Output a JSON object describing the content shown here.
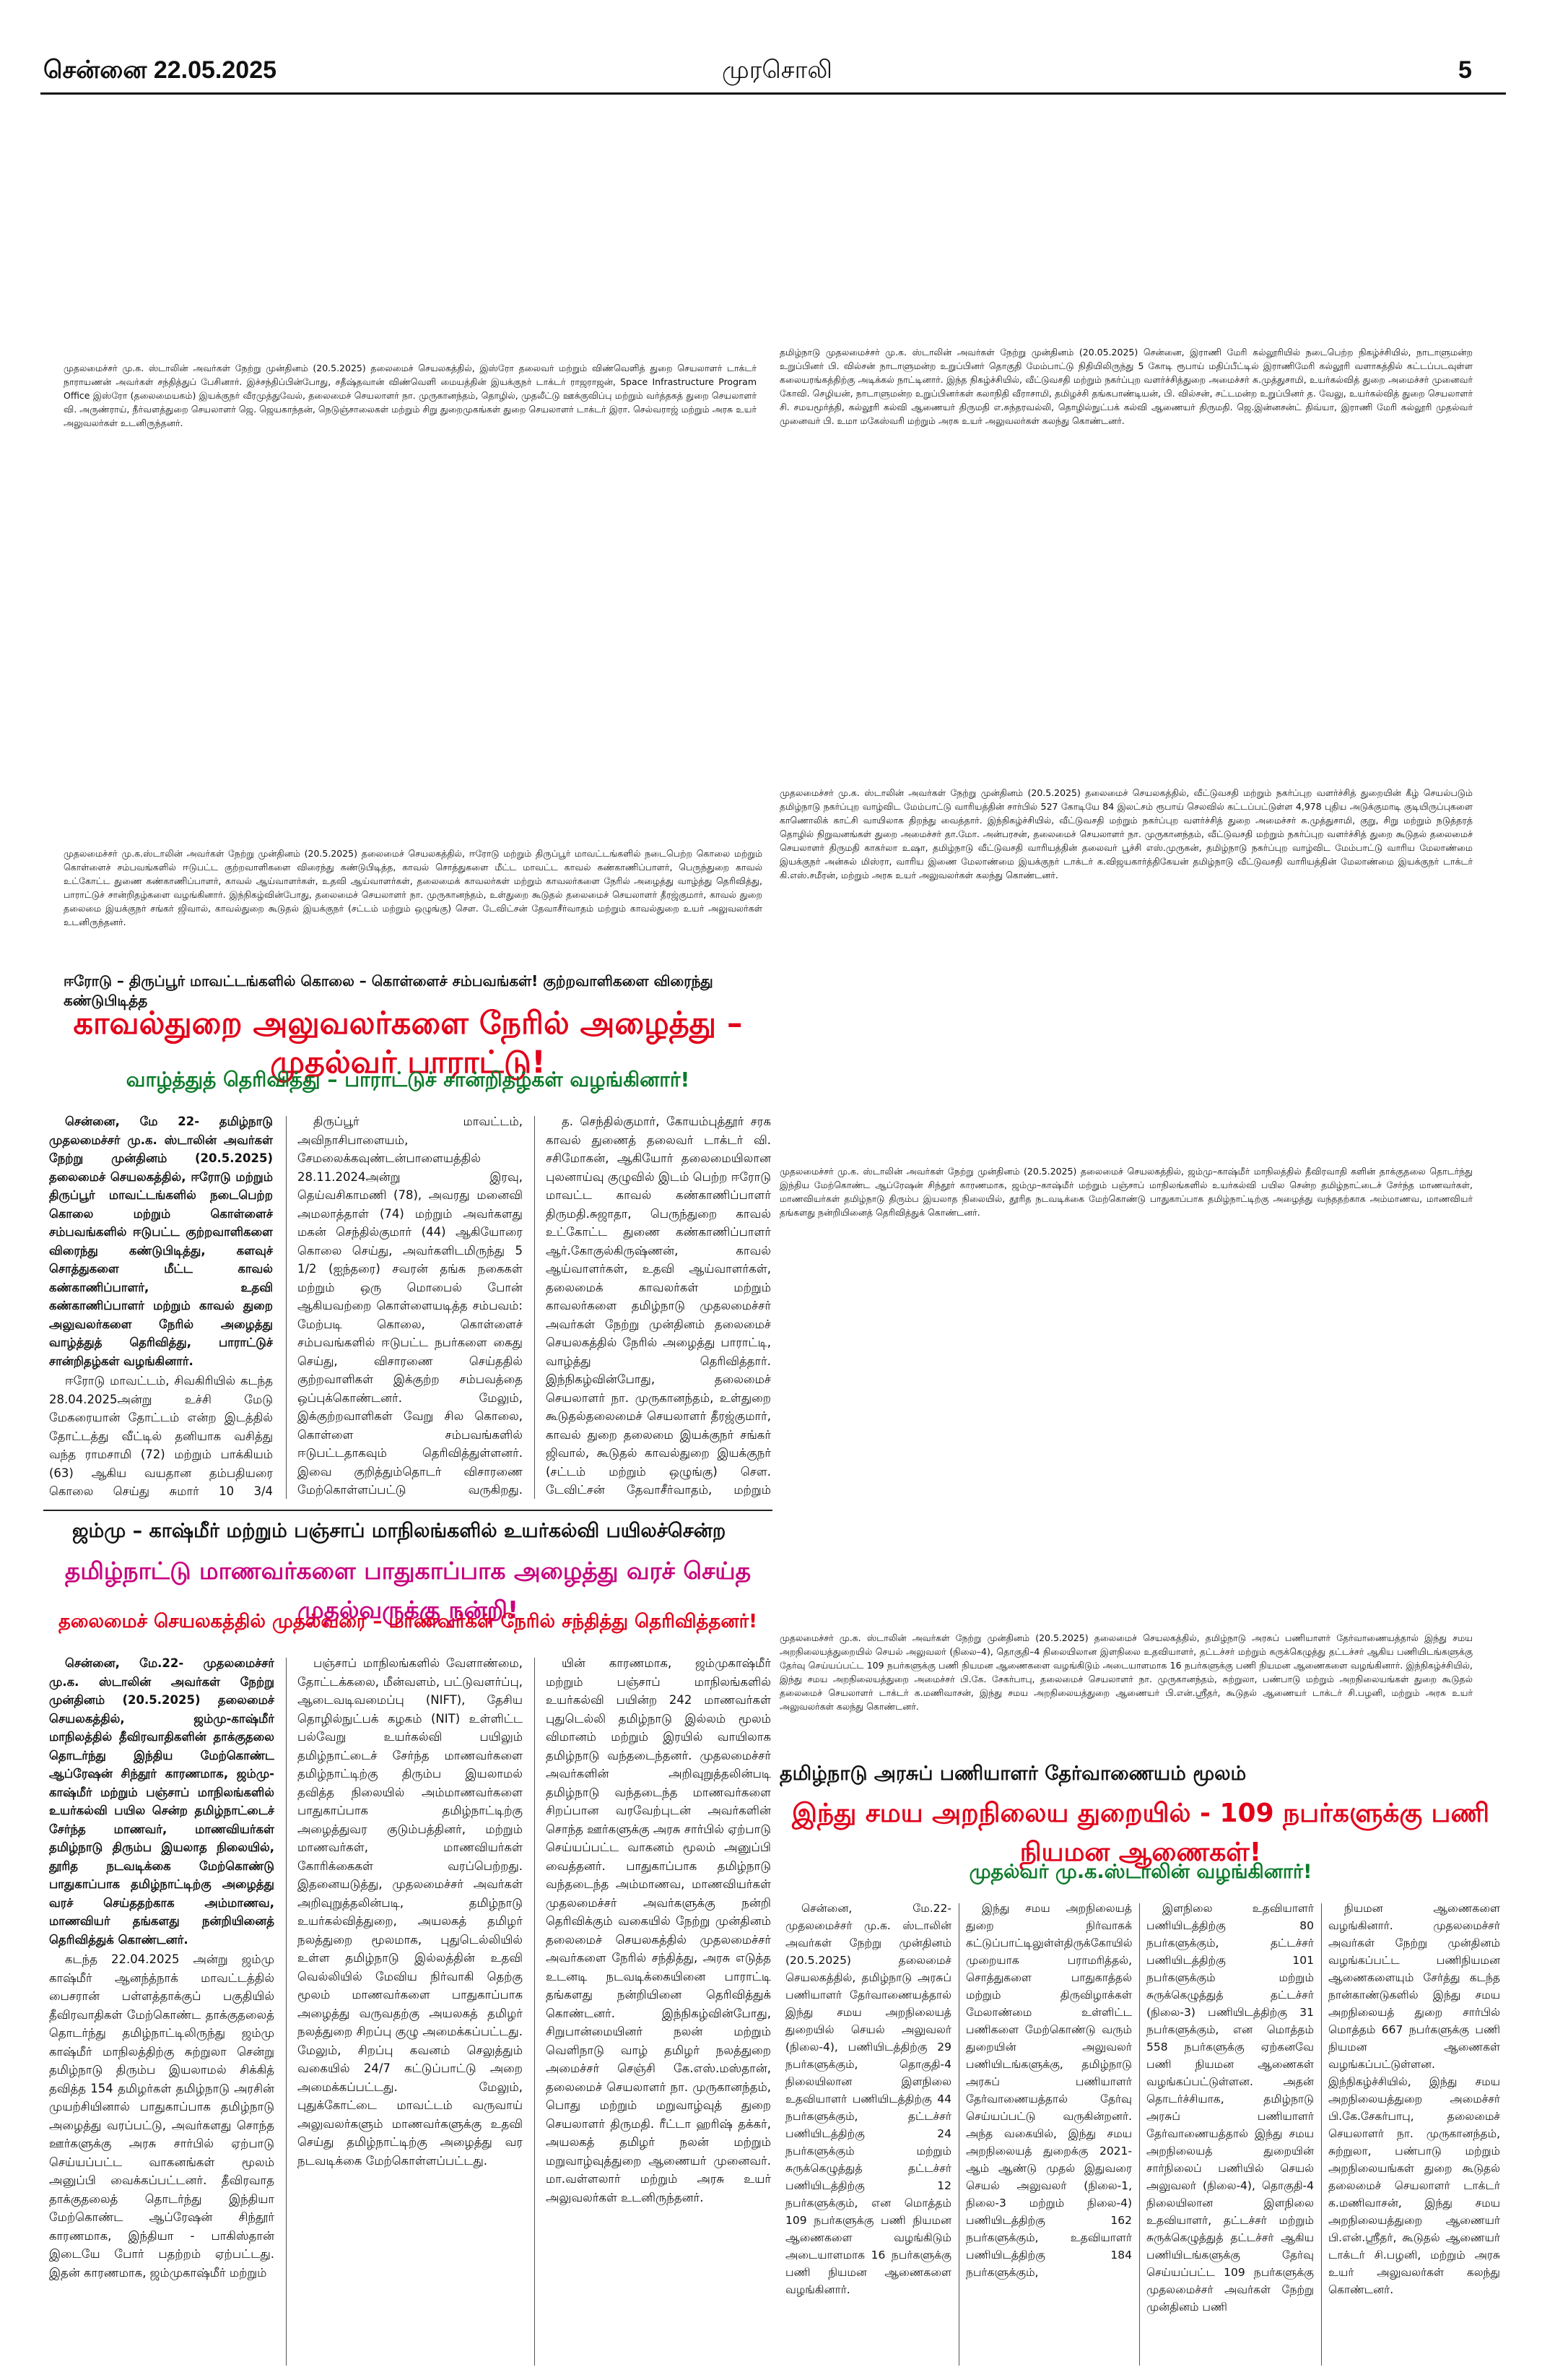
{
  "header": {
    "date": "சென்னை 22.05.2025",
    "paper_name": "முரசொலி",
    "page_no": "5"
  },
  "photos": [
    {
      "caption": "முதலமைச்சர் மு.க. ஸ்டாலின் அவர்கள் நேற்று முன்தினம் (20.5.2025) தலைமைச் செயலகத்தில், இஸ்ரோ தலைவர் மற்றும் விண்வெளித் துறை செயலாளர் டாக்டர் நாராயணன் அவர்கள் சந்தித்துப் பேசினார். இச்சந்திப்பின்போது, சதீஷ்தவான் விண்வெளி மையத்தின் இயக்குநர் டாக்டர் ராஜராஜன், Space Infrastructure Program Office இஸ்ரோ (தலைமையகம்) இயக்குநர் வீரமுத்துவேல், தலைமைச் செயலாளர் நா. முருகானந்தம், தொழில், முதலீட்டு ஊக்குவிப்பு மற்றும் வர்த்தகத் துறை செயலாளர் வி. அருண்ராய், நீர்வளத்துறை செயலாளர் ஜெ. ஜெயகாந்தன், நெடுஞ்சாலைகள் மற்றும் சிறு துறைமுகங்கள் துறை செயலாளர் டாக்டர் இரா. செல்வராஜ் மற்றும் அரசு உயர் அலுவலர்கள் உடனிருந்தனர்."
    },
    {
      "caption": "தமிழ்நாடு முதலமைச்சர் மு.க. ஸ்டாலின் அவர்கள் நேற்று முன்தினம் (20.05.2025) சென்னை, இராணி மேரி கல்லூரியில் நடைபெற்ற நிகழ்ச்சியில், நாடாளுமன்ற உறுப்பினர் பி. வில்சன் நாடாளுமன்ற உறுப்பினர் தொகுதி மேம்பாட்டு நிதியிலிருந்து 5 கோடி ரூபாய் மதிப்பீட்டில் இராணிமேரி கல்லூரி வளாகத்தில் கட்டப்படவுள்ள கலையரங்கத்திற்கு அடிக்கல் நாட்டினார். இந்த நிகழ்ச்சியில், வீட்டுவசதி மற்றும் நகர்ப்புற வளர்ச்சித்துறை அமைச்சர் சு.முத்துசாமி, உயர்கல்வித் துறை அமைச்சர் முனைவர் கோவி. செழியன், நாடாளுமன்ற உறுப்பினர்கள் கலாநிதி வீராசாமி, தமிழச்சி தங்கபாண்டியன், பி. வில்சன், சட்டமன்ற உறுப்பினர் த. வேலு, உயர்கல்வித் துறை செயலாளர் சி. சமயமூர்த்தி, கல்லூரி கல்வி ஆணையர் திருமதி எ.சுந்தரவல்லி, தொழில்நுட்பக் கல்வி ஆணையர் திருமதி. ஜெ.இன்னசன்ட் திவ்யா, இராணி மேரி கல்லூரி முதல்வர் முனைவர் பி. உமா மகேஸ்வரி மற்றும் அரசு உயர் அலுவலர்கள் கலந்து கொண்டனர்."
    },
    {
      "caption": "முதலமைச்சர் மு.க.ஸ்டாலின் அவர்கள் நேற்று முன்தினம் (20.5.2025) தலைமைச் செயலகத்தில், ஈரோடு மற்றும் திருப்பூர் மாவட்டங்களில் நடைபெற்ற கொலை மற்றும் கொள்ளைச் சம்பவங்களில் ஈடுபட்ட குற்றவாளிகளை விரைந்து கண்டுபிடித்த, காவல் சொத்துகளை மீட்ட மாவட்ட காவல் கண்காணிப்பாளர், பெருந்துறை காவல் உட்கோட்ட துணை கண்காணிப்பாளர், காவல் ஆய்வாளர்கள், உதவி ஆய்வாளர்கள், தலைமைக் காவலர்கள் மற்றும் காவலர்களை நேரில் அழைத்து வாழ்த்து தெரிவித்து, பாராட்டுச் சான்றிதழ்களை வழங்கினார். இந்நிகழ்வின்போது, தலைமைச் செயலாளர் நா. முருகானந்தம், உள்துறை கூடுதல் தலைமைச் செயலாளர் தீரஜ்குமார், காவல் துறை தலைமை இயக்குநர் சங்கர் ஜிவால், காவல்துறை கூடுதல் இயக்குநர் (சட்டம் மற்றும் ஒழுங்கு) செள. டேவிட்சன் தேவாசீர்வாதம் மற்றும் காவல்துறை உயர் அலுவலர்கள் உடனிருந்தனர்."
    },
    {
      "caption": "முதலமைச்சர் மு.க. ஸ்டாலின் அவர்கள் நேற்று முன்தினம் (20.5.2025) தலைமைச் செயலகத்தில், வீட்டுவசதி மற்றும் நகர்ப்புற வளர்ச்சித் துறையின் கீழ் செயல்படும் தமிழ்நாடு நகர்ப்புற வாழ்விட மேம்பாட்டு வாரியத்தின் சார்பில் 527 கோடியே 84 இலட்சம் ரூபாய் செலவில் கட்டப்பட்டுள்ள 4,978 புதிய அடுக்குமாடி குடியிருப்புகளை காணொலிக் காட்சி வாயிலாக திறந்து வைத்தார். இந்நிகழ்ச்சியில், வீட்டுவசதி மற்றும் நகர்ப்புற வளர்ச்சித் துறை அமைச்சர் சு.முத்துசாமி, குறு, சிறு மற்றும் நடுத்தரத் தொழில் நிறுவனங்கள் துறை அமைச்சர் தா.மோ. அன்பரசன், தலைமைச் செயலாளர் நா. முருகானந்தம், வீட்டுவசதி மற்றும் நகர்ப்புற வளர்ச்சித் துறை கூடுதல் தலைமைச் செயலாளர் திருமதி காகர்லா உஷா, தமிழ்நாடு வீட்டுவசதி வாரியத்தின் தலைவர் பூச்சி எஸ்.முருகன், தமிழ்நாடு நகர்ப்புற வாழ்விட மேம்பாட்டு வாரிய மேலாண்மை இயக்குநர் அன்சுல் மிஸ்ரா, வாரிய இணை மேலாண்மை இயக்குநர் டாக்டர் க.விஜயகார்த்திகேயன் தமிழ்நாடு வீட்டுவசதி வாரியத்தின் மேலாண்மை இயக்குநர் டாக்டர் கி.எஸ்.சமீரன், மற்றும் அரசு உயர் அலுவலர்கள் கலந்து கொண்டனர்."
    },
    {
      "caption": "முதலமைச்சர் மு.க. ஸ்டாலின் அவர்கள் நேற்று முன்தினம் (20.5.2025) தலைமைச் செயலகத்தில், ஜம்மு–காஷ்மீர் மாநிலத்தில் தீவிரவாதி களின் தாக்குதலை தொடர்ந்து இந்திய மேற்கொண்ட ஆப்ரேஷன் சிந்தூர் காரணமாக, ஜம்மு–காஷ்மீர் மற்றும் பஞ்சாப் மாநிலங்களில் உயர்கல்வி பயில சென்ற தமிழ்நாட்டைச் சேர்ந்த மாணவர்கள், மாணவியர்கள் தமிழ்நாடு திரும்ப இயலாத நிலையில், தூரித நடவடிக்கை மேற்கொண்டு பாதுகாப்பாக தமிழ்நாட்டிற்கு அழைத்து வந்ததற்காக அம்மாணவ, மாணவியர் தங்களது நன்றியினைத் தெரிவித்துக் கொண்டனர்."
    },
    {
      "caption": "முதலமைச்சர் மு.க. ஸ்டாலின் அவர்கள் நேற்று முன்தினம் (20.5.2025) தலைமைச் செயலகத்தில், தமிழ்நாடு அரசுப் பணியாளர் தேர்வாணையத்தால் இந்து சமய அறநிலையத்துறையில் செயல் அலுவலர் (நிலை–4), தொகுதி–4 நிலையிலான இளநிலை உதவியாளர், தட்டச்சர் மற்றும் சுருக்கெழுத்து தட்டச்சர் ஆகிய பணியிடங்களுக்கு தேர்வு செய்யப்பட்ட 109 நபர்களுக்கு பணி நியமன ஆணைகளை வழங்கிடும் அடையாளமாக 16 நபர்களுக்கு பணி நியமன ஆணைகளை வழங்கினார். இந்நிகழ்ச்சியில், இந்து சமய அறநிலையத்துறை அமைச்சர் பி.கே. சேகர்பாபு, தலைமைச் செயலாளர் நா. முருகானந்தம், சுற்றுலா, பண்பாடு மற்றும் அறநிலையங்கள் துறை கூடுதல் தலைமைச் செயலாளர் டாக்டர் க.மணிவாசன், இந்து சமய அறநிலையத்துறை ஆணையர் பி.என்.ஸ்ரீதர், கூடுதல் ஆணையர் டாக்டர் சி.பழனி, மற்றும் அரசு உயர் அலுவலர்கள் கலந்து கொண்டனர்."
    }
  ],
  "story1": {
    "kicker": "ஈரோடு – திருப்பூர் மாவட்டங்களில் கொலை – கொள்ளைச் சம்பவங்கள்! குற்றவாளிகளை விரைந்து கண்டுபிடித்த",
    "headline": "காவல்துறை அலுவலர்களை நேரில் அழைத்து – முதல்வர் பாராட்டு!",
    "subhead": "வாழ்த்துத் தெரிவித்து – பாராட்டுச் சான்றிதழ்கள் வழங்கினார்!",
    "col1_lead": "சென்னை, மே 22- தமிழ்நாடு முதலமைச்சர் மு.க. ஸ்டாலின் அவர்கள் நேற்று முன்தினம் (20.5.2025) தலைமைச் செயலகத்தில், ஈரோடு மற்றும் திருப்பூர் மாவட்டங்களில் நடைபெற்ற கொலை மற்றும் கொள்ளைச் சம்பவங்களில் ஈடுபட்ட குற்றவாளிகளை விரைந்து கண்டுபிடித்து, களவுச் சொத்துகளை மீட்ட காவல் கண்காணிப்பாளர், உதவி கண்காணிப்பாளர் மற்றும் காவல் துறை அலுவலர்களை நேரில் அழைத்து வாழ்த்துத் தெரிவித்து, பாராட்டுச் சான்றிதழ்கள் வழங்கினார்.",
    "col1_body": "ஈரோடு மாவட்டம், சிவகிரியில் கடந்த 28.04.2025அன்று உச்சி மேடு மேகரையான் தோட்டம் என்ற இடத்தில் தோட்டத்து வீட்டில் தனியாக வசித்து வந்த ராமசாமி (72) மற்றும் பாக்கியம் (63) ஆகிய வயதான தம்பதியரை கொலை செய்து சுமார் 10 3/4 (பத்தேமுக்கால்) சவரன் நகைகளை மர்ம நபர்கள் கொள்ளையடித்த சம்பவம்;",
    "col2_body": "திருப்பூர் மாவட்டம், அவிநாசிபாளையம், சேமலைக்கவுண்டன்பாளையத்தில் 28.11.2024அன்று இரவு, தெய்வசிகாமணி (78), அவரது மனைவி அமலாத்தாள் (74) மற்றும் அவர்களது மகன் செந்தில்குமார் (44) ஆகியோரை கொலை செய்து, அவர்களிடமிருந்து 5 1/2 (ஐந்தரை) சவரன் தங்க நகைகள் மற்றும் ஒரு மொபைல் போன் ஆகியவற்றை கொள்ளையடித்த சம்பவம்: மேற்படி கொலை, கொள்ளைச் சம்பவங்களில் ஈடுபட்ட நபர்களை கைது செய்து, விசாரணை செய்ததில் குற்றவாளிகள் இக்குற்ற சம்பவத்தை ஒப்புக்கொண்டனர். மேலும், இக்குற்றவாளிகள் வேறு சில கொலை, கொள்ளை சம்பவங்களில் ஈடுபட்டதாகவும் தெரிவித்துள்ளனர். இவை குறித்தும்தொடர் விசாரணை மேற்கொள்ளப்பட்டு வருகிறது. இக்குற்றசம்பவங்களை விரைந்து, புலனாய்வு செய்து குற்றவாளிகளை கைது செய்த, காவல்துறை தலைவர் (மேற்கு மண்டலம்) கோயம்புத்தூர்",
    "col3_body": "த. செந்தில்குமார், கோயம்புத்தூர் சரக காவல் துணைத் தலைவர் டாக்டர் வி. சசிமோகன், ஆகியோர் தலைமையிலான புலனாய்வு குழுவில் இடம் பெற்ற ஈரோடு மாவட்ட காவல் கண்காணிப்பாளர் திருமதி.சுஜாதா, பெருந்துறை காவல் உட்கோட்ட துணை கண்காணிப்பாளர் ஆர்.கோகுல்கிருஷ்ணன், காவல் ஆய்வாளர்கள், உதவி ஆய்வாளர்கள், தலைமைக் காவலர்கள் மற்றும் காவலர்களை தமிழ்நாடு முதலமைச்சர் அவர்கள் நேற்று முன்தினம் தலைமைச் செயலகத்தில் நேரில் அழைத்து பாராட்டி, வாழ்த்து தெரிவித்தார். இந்நிகழ்வின்போது, தலைமைச் செயலாளர் நா. முருகானந்தம், உள்துறை கூடுதல்தலைமைச் செயலாளர் தீரஜ்குமார், காவல் துறை தலைமை இயக்குநர் சங்கர் ஜிவால், கூடுதல் காவல்துறை இயக்குநர் (சட்டம் மற்றும் ஒழுங்கு) செள. டேவிட்சன் தேவாசீர்வாதம், மற்றும் காவல்துறை உயர் அலுவலர்கள் உடனிருந்தனர்."
  },
  "story2": {
    "kicker": "ஜம்மு – காஷ்மீர் மற்றும் பஞ்சாப் மாநிலங்களில் உயர்கல்வி பயிலச்சென்ற",
    "headline": "தமிழ்நாட்டு மாணவர்களை பாதுகாப்பாக அழைத்து வரச் செய்த முதல்வருக்கு நன்றி!",
    "subhead": "தலைமைச் செயலகத்தில் முதல்வரை – மாணவர்கள் நேரில் சந்தித்து தெரிவித்தனர்!",
    "col1_lead": "சென்னை, மே.22- முதலமைச்சர் மு.க. ஸ்டாலின் அவர்கள் நேற்று முன்தினம் (20.5.2025) தலைமைச் செயலகத்தில், ஜம்மு-காஷ்மீர் மாநிலத்தில் தீவிரவாதிகளின் தாக்குதலை தொடர்ந்து இந்திய மேற்கொண்ட ஆப்ரேஷன் சிந்தூர் காரணமாக, ஜம்மு-காஷ்மீர் மற்றும் பஞ்சாப் மாநிலங்களில் உயர்கல்வி பயில சென்ற தமிழ்நாட்டைச் சேர்ந்த மாணவர், மாணவியர்கள் தமிழ்நாடு திரும்ப இயலாத நிலையில், தூரித நடவடிக்கை மேற்கொண்டு பாதுகாப்பாக தமிழ்நாட்டிற்கு அழைத்து வரச் செய்ததற்காக அம்மாணவ, மாணவியர் தங்களது நன்றியினைத் தெரிவித்துக் கொண்டனர்.",
    "col1_body": "கடந்த 22.04.2025 அன்று ஜம்மு காஷ்மீர் ஆனந்த்நாக் மாவட்டத்தில் பைசரான் பள்ளத்தாக்குப் பகுதியில் தீவிரவாதிகள் மேற்கொண்ட தாக்குதலைத் தொடர்ந்து தமிழ்நாட்டிலிருந்து ஜம்மு காஷ்மீர் மாநிலத்திற்கு சுற்றுலா சென்று தமிழ்நாடு திரும்ப இயலாமல் சிக்கித் தவித்த 154 தமிழர்கள் தமிழ்நாடு அரசின் முயற்சியினால் பாதுகாப்பாக தமிழ்நாடு அழைத்து வரப்பட்டு, அவர்களது சொந்த ஊர்களுக்கு அரசு சார்பில் ஏற்பாடு செய்யப்பட்ட வாகனங்கள் மூலம் அனுப்பி வைக்கப்பட்டனர். தீவிரவாத தாக்குதலைத் தொடர்ந்து இந்தியா மேற்கொண்ட ஆப்ரேஷன் சிந்தூர் காரணமாக, இந்தியா - பாகிஸ்தான் இடையே போர் பதற்றம் ஏற்பட்டது. இதன் காரணமாக, ஜம்முகாஷ்மீர் மற்றும்",
    "col2_body": "பஞ்சாப் மாநிலங்களில் வேளாண்மை, தோட்டக்கலை, மீன்வளம், பட்டுவளர்ப்பு, ஆடைவடிவமைப்பு (NIFT), தேசிய தொழில்நுட்பக் கழகம் (NIT) உள்ளிட்ட பல்வேறு உயர்கல்வி பயிலும் தமிழ்நாட்டைச் சேர்ந்த மாணவர்களை தமிழ்நாட்டிற்கு திரும்ப இயலாமல் தவித்த நிலையில் அம்மாணவர்களை பாதுகாப்பாக தமிழ்நாட்டிற்கு அழைத்துவர குடும்பத்தினர், மற்றும் மாணவர்கள், மாணவியர்கள் கோரிக்கைகள் வரப்பெற்றது. இதனையடுத்து, முதலமைச்சர் அவர்கள் அறிவுறுத்தலின்படி, தமிழ்நாடு உயர்கல்வித்துறை, அயலகத் தமிழர் நலத்துறை மூலமாக, புதுடெல்லியில் உள்ள தமிழ்நாடு இல்லத்தின் உதவி வெல்லியில் மேவிய நிர்வாகி தெற்கு மூலம் மாணவர்களை பாதுகாப்பாக அழைத்து வருவதற்கு அயலகத் தமிழர் நலத்துறை சிறப்பு குழு அமைக்கப்பட்டது. மேலும், சிறப்பு கவனம் செலுத்தும் வகையில் 24/7 கட்டுப்பாட்டு அறை அமைக்கப்பட்டது. மேலும், புதுக்கோட்டை மாவட்டம் வருவாய் அலுவலர்களும் மாணவர்களுக்கு உதவி செய்து தமிழ்நாட்டிற்கு அழைத்து வர நடவடிக்கை மேற்கொள்ளப்பட்டது.",
    "col3_body": "யின் காரணமாக, ஜம்முகாஷ்மீர் மற்றும் பஞ்சாப் மாநிலங்களில் உயர்கல்வி பயின்ற 242 மாணவர்கள் புதுடெல்லி தமிழ்நாடு இல்லம் மூலம் விமானம் மற்றும் இரயில் வாயிலாக தமிழ்நாடு வந்தடைந்தனர். முதலமைச்சர் அவர்களின் அறிவுறுத்தலின்படி தமிழ்நாடு வந்தடைந்த மாணவர்களை சிறப்பான வரவேற்புடன் அவர்களின் சொந்த ஊர்களுக்கு அரசு சார்பில் ஏற்பாடு செய்யப்பட்ட வாகனம் மூலம் அனுப்பி வைத்தனர். பாதுகாப்பாக தமிழ்நாடு வந்தடைந்த அம்மாணவ, மாணவியர்கள் முதலமைச்சர் அவர்களுக்கு நன்றி தெரிவிக்கும் வகையில் நேற்று முன்தினம் தலைமைச் செயலகத்தில் முதலமைச்சர் அவர்களை நேரில் சந்தித்து, அரசு எடுத்த உடனடி நடவடிக்கையினை பாராட்டி தங்களது நன்றியினை தெரிவித்துக் கொண்டனர். இந்நிகழ்வின்போது, சிறுபான்மையினர் நலன் மற்றும் வெளிநாடு வாழ் தமிழர் நலத்துறை அமைச்சர் செஞ்சி கே.எஸ்.மஸ்தான், தலைமைச் செயலாளர் நா. முருகானந்தம், பொது மற்றும் மறுவாழ்வுத் துறை செயலாளர் திருமதி. ரீட்டா ஹரிஷ் தக்கர், அயலகத் தமிழர் நலன் மற்றும் மறுவாழ்வுத்துறை ஆணையர் முனைவர். மா.வள்ளலார் மற்றும் அரசு உயர் அலுவலர்கள் உடனிருந்தனர்."
  },
  "story3": {
    "kicker": "தமிழ்நாடு அரசுப் பணியாளர் தேர்வாணையம் மூலம்",
    "headline": "இந்து சமய அறநிலைய துறையில் - 109 நபர்களுக்கு பணி நியமன ஆணைகள்!",
    "subhead": "முதல்வர் மு.க.ஸ்டாலின் வழங்கினார்!",
    "col1_body": "சென்னை, மே.22- முதலமைச்சர் மு.க. ஸ்டாலின் அவர்கள் நேற்று முன்தினம் (20.5.2025) தலைமைச் செயலகத்தில், தமிழ்நாடு அரசுப் பணியாளர் தேர்வாணையத்தால் இந்து சமய அறநிலையத் துறையில் செயல் அலுவலர் (நிலை-4), பணியிடத்திற்கு 29 நபர்களுக்கும், தொகுதி-4 நிலையிலான இளநிலை உதவியாளர் பணியிடத்திற்கு 44 நபர்களுக்கும், தட்டச்சர் பணியிடத்திற்கு 24 நபர்களுக்கும் மற்றும் சுருக்கெழுத்துத் தட்டச்சர் பணியிடத்திற்கு 12 நபர்களுக்கும், என மொத்தம் 109 நபர்களுக்கு பணி நியமன ஆணைகளை வழங்கிடும் அடையாளமாக 16 நபர்களுக்கு பணி நியமன ஆணைகளை வழங்கினார்.",
    "col2_body": "இந்து சமய அறநிலையத் துறை நிர்வாகக் கட்டுப்பாட்டிலுள்ள்திருக்கோயில்களை முறையாக பராமரித்தல், சொத்துகளை பாதுகாத்தல் மற்றும் திருவிழாக்கள் மேலாண்மை உள்ளிட்ட பணிகளை மேற்கொண்டு வரும் துறையின் அலுவலர் பணியிடங்களுக்கு, தமிழ்நாடு அரசுப் பணியாளர் தேர்வாணையத்தால் தேர்வு செய்யப்பட்டு வருகின்றனர். அந்த வகையில், இந்து சமய அறநிலையத் துறைக்கு 2021-ஆம் ஆண்டு முதல் இதுவரை செயல் அலுவலர் (நிலை-1, நிலை-3 மற்றும் நிலை-4) பணியிடத்திற்கு 162 நபர்களுக்கும், உதவியாளர் பணியிடத்திற்கு 184 நபர்களுக்கும்,",
    "col3_body": "இளநிலை உதவியாளர் பணியிடத்திற்கு 80 நபர்களுக்கும், தட்டச்சர் பணியிடத்திற்கு 101 நபர்களுக்கும் மற்றும் சுருக்கெழுத்துத் தட்டச்சர் (நிலை-3) பணியிடத்திற்கு 31 நபர்களுக்கும், என மொத்தம் 558 நபர்களுக்கு ஏற்கனவே பணி நியமன ஆணைகள் வழங்கப்பட்டுள்ளன. அதன் தொடர்ச்சியாக, தமிழ்நாடு அரசுப் பணியாளர் தேர்வாணையத்தால் இந்து சமய அறநிலையத் துறையின் சார்நிலைப் பணியில் செயல் அலுவலர் (நிலை-4), தொகுதி-4 நிலையிலான இளநிலை உதவியாளர், தட்டச்சர் மற்றும் சுருக்கெழுத்துத் தட்டச்சர் ஆகிய பணியிடங்களுக்கு தேர்வு செய்யப்பட்ட 109 நபர்களுக்கு முதலமைச்சர் அவர்கள் நேற்று முன்தினம் பணி",
    "col4_body": "நியமன ஆணைகளை வழங்கினார். முதலமைச்சர் அவர்கள் நேற்று முன்தினம் வழங்கப்பட்ட பணிநியமன ஆணைகளையும் சேர்த்து கடந்த நான்காண்டுகளில் இந்து சமய அறநிலையத் துறை சார்பில் மொத்தம் 667 நபர்களுக்கு பணி நியமன ஆணைகள் வழங்கப்பட்டுள்ளன. இந்நிகழ்ச்சியில், இந்து சமய அறநிலையத்துறை அமைச்சர் பி.கே.சேகர்பாபு, தலைமைச் செயலாளர் நா. முருகானந்தம், சுற்றுலா, பண்பாடு மற்றும் அறநிலையங்கள் துறை கூடுதல் தலைமைச் செயலாளர் டாக்டர் க.மணிவாசன், இந்து சமய அறநிலையத்துறை ஆணையர் பி.என்.ஸ்ரீதர், கூடுதல் ஆணையர் டாக்டர் சி.பழனி, மற்றும் அரசு உயர் அலுவலர்கள் கலந்து கொண்டனர்."
  },
  "colors": {
    "red": "#e2001a",
    "magenta": "#c8007e",
    "green": "#0a7a28"
  }
}
